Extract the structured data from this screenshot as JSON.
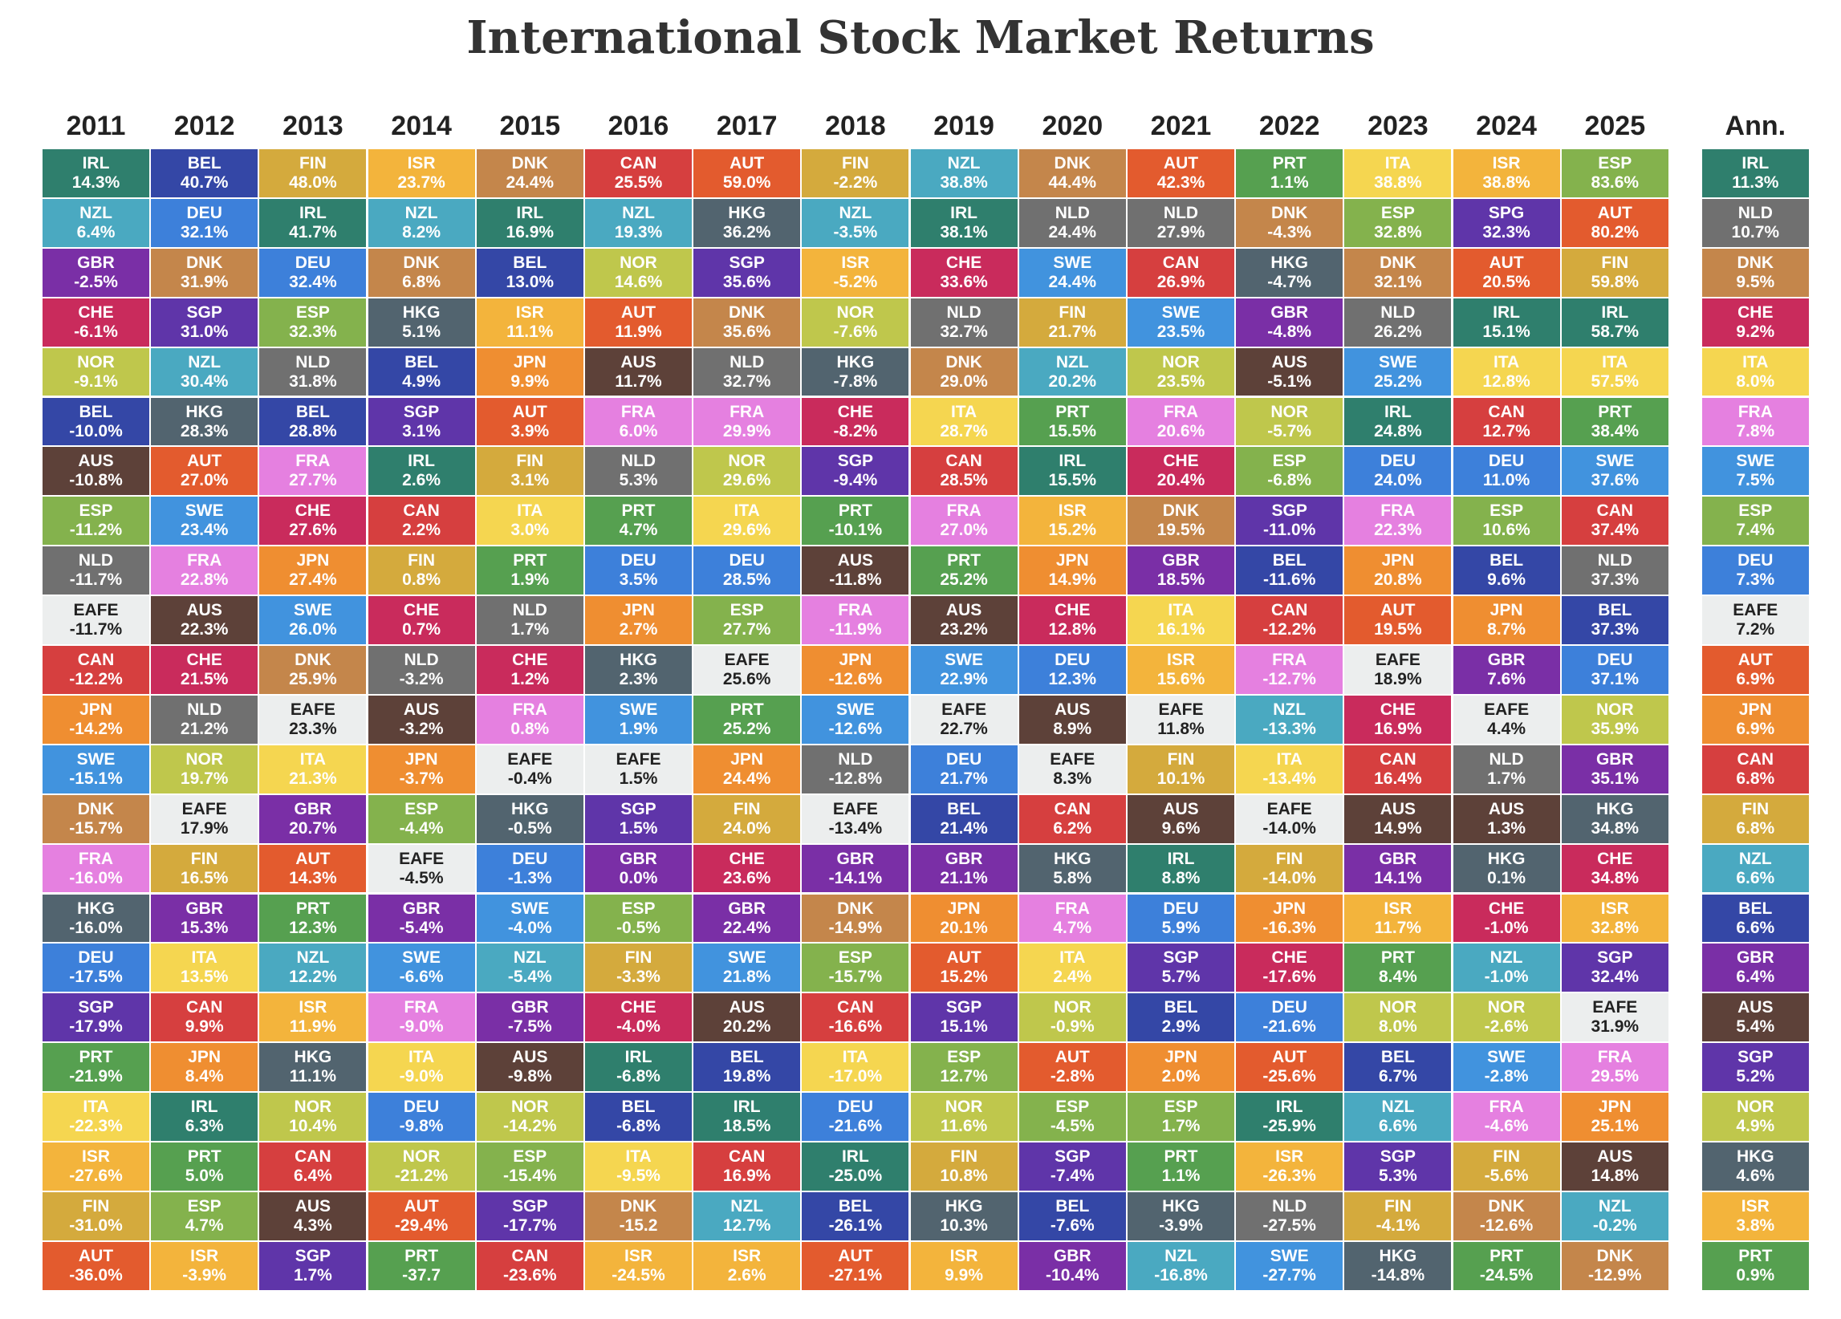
{
  "chart_data": {
    "type": "quilt",
    "title": "International Stock Market Returns",
    "colors": {
      "IRL": "#2f7f6d",
      "NZL": "#4aa9c1",
      "GBR": "#7a2fa6",
      "CHE": "#c92b5c",
      "NOR": "#bfc74c",
      "BEL": "#3447a6",
      "AUS": "#5d4139",
      "ESP": "#84b24d",
      "NLD": "#707070",
      "EAFE": "#eceeee",
      "CAN": "#d63f3f",
      "JPN": "#ef8e31",
      "SWE": "#4193de",
      "DNK": "#c4864b",
      "FRA": "#e580e0",
      "HKG": "#52646f",
      "DEU": "#3d80da",
      "SGP": "#5f35a9",
      "SPG": "#5f35a9",
      "PRT": "#56a050",
      "ITA": "#f5d650",
      "ISR": "#f3b43c",
      "FIN": "#d4aa3d",
      "AUT": "#e35b2e"
    },
    "columns": [
      {
        "header": "2011",
        "codes": [
          "IRL",
          "NZL",
          "GBR",
          "CHE",
          "NOR",
          "BEL",
          "AUS",
          "ESP",
          "NLD",
          "EAFE",
          "CAN",
          "JPN",
          "SWE",
          "DNK",
          "FRA",
          "HKG",
          "DEU",
          "SGP",
          "PRT",
          "ITA",
          "ISR",
          "FIN",
          "AUT"
        ],
        "labels": [
          "14.3%",
          "6.4%",
          "-2.5%",
          "-6.1%",
          "-9.1%",
          "-10.0%",
          "-10.8%",
          "-11.2%",
          "-11.7%",
          "-11.7%",
          "-12.2%",
          "-14.2%",
          "-15.1%",
          "-15.7%",
          "-16.0%",
          "-16.0%",
          "-17.5%",
          "-17.9%",
          "-21.9%",
          "-22.3%",
          "-27.6%",
          "-31.0%",
          "-36.0%"
        ]
      },
      {
        "header": "2012",
        "codes": [
          "BEL",
          "DEU",
          "DNK",
          "SGP",
          "NZL",
          "HKG",
          "AUT",
          "SWE",
          "FRA",
          "AUS",
          "CHE",
          "NLD",
          "NOR",
          "EAFE",
          "FIN",
          "GBR",
          "ITA",
          "CAN",
          "JPN",
          "IRL",
          "PRT",
          "ESP",
          "ISR"
        ],
        "labels": [
          "40.7%",
          "32.1%",
          "31.9%",
          "31.0%",
          "30.4%",
          "28.3%",
          "27.0%",
          "23.4%",
          "22.8%",
          "22.3%",
          "21.5%",
          "21.2%",
          "19.7%",
          "17.9%",
          "16.5%",
          "15.3%",
          "13.5%",
          "9.9%",
          "8.4%",
          "6.3%",
          "5.0%",
          "4.7%",
          "-3.9%"
        ]
      },
      {
        "header": "2013",
        "codes": [
          "FIN",
          "IRL",
          "DEU",
          "ESP",
          "NLD",
          "BEL",
          "FRA",
          "CHE",
          "JPN",
          "SWE",
          "DNK",
          "EAFE",
          "ITA",
          "GBR",
          "AUT",
          "PRT",
          "NZL",
          "ISR",
          "HKG",
          "NOR",
          "CAN",
          "AUS",
          "SGP"
        ],
        "labels": [
          "48.0%",
          "41.7%",
          "32.4%",
          "32.3%",
          "31.8%",
          "28.8%",
          "27.7%",
          "27.6%",
          "27.4%",
          "26.0%",
          "25.9%",
          "23.3%",
          "21.3%",
          "20.7%",
          "14.3%",
          "12.3%",
          "12.2%",
          "11.9%",
          "11.1%",
          "10.4%",
          "6.4%",
          "4.3%",
          "1.7%"
        ]
      },
      {
        "header": "2014",
        "codes": [
          "ISR",
          "NZL",
          "DNK",
          "HKG",
          "BEL",
          "SGP",
          "IRL",
          "CAN",
          "FIN",
          "CHE",
          "NLD",
          "AUS",
          "JPN",
          "ESP",
          "EAFE",
          "GBR",
          "SWE",
          "FRA",
          "ITA",
          "DEU",
          "NOR",
          "AUT",
          "PRT"
        ],
        "labels": [
          "23.7%",
          "8.2%",
          "6.8%",
          "5.1%",
          "4.9%",
          "3.1%",
          "2.6%",
          "2.2%",
          "0.8%",
          "0.7%",
          "-3.2%",
          "-3.2%",
          "-3.7%",
          "-4.4%",
          "-4.5%",
          "-5.4%",
          "-6.6%",
          "-9.0%",
          "-9.0%",
          "-9.8%",
          "-21.2%",
          "-29.4%",
          "-37.7"
        ]
      },
      {
        "header": "2015",
        "codes": [
          "DNK",
          "IRL",
          "BEL",
          "ISR",
          "JPN",
          "AUT",
          "FIN",
          "ITA",
          "PRT",
          "NLD",
          "CHE",
          "FRA",
          "EAFE",
          "HKG",
          "DEU",
          "SWE",
          "NZL",
          "GBR",
          "AUS",
          "NOR",
          "ESP",
          "SGP",
          "CAN"
        ],
        "labels": [
          "24.4%",
          "16.9%",
          "13.0%",
          "11.1%",
          "9.9%",
          "3.9%",
          "3.1%",
          "3.0%",
          "1.9%",
          "1.7%",
          "1.2%",
          "0.8%",
          "-0.4%",
          "-0.5%",
          "-1.3%",
          "-4.0%",
          "-5.4%",
          "-7.5%",
          "-9.8%",
          "-14.2%",
          "-15.4%",
          "-17.7%",
          "-23.6%"
        ]
      },
      {
        "header": "2016",
        "codes": [
          "CAN",
          "NZL",
          "NOR",
          "AUT",
          "AUS",
          "FRA",
          "NLD",
          "PRT",
          "DEU",
          "JPN",
          "HKG",
          "SWE",
          "EAFE",
          "SGP",
          "GBR",
          "ESP",
          "FIN",
          "CHE",
          "IRL",
          "BEL",
          "ITA",
          "DNK",
          "ISR"
        ],
        "labels": [
          "25.5%",
          "19.3%",
          "14.6%",
          "11.9%",
          "11.7%",
          "6.0%",
          "5.3%",
          "4.7%",
          "3.5%",
          "2.7%",
          "2.3%",
          "1.9%",
          "1.5%",
          "1.5%",
          "0.0%",
          "-0.5%",
          "-3.3%",
          "-4.0%",
          "-6.8%",
          "-6.8%",
          "-9.5%",
          "-15.2",
          "-24.5%"
        ]
      },
      {
        "header": "2017",
        "codes": [
          "AUT",
          "HKG",
          "SGP",
          "DNK",
          "NLD",
          "FRA",
          "NOR",
          "ITA",
          "DEU",
          "ESP",
          "EAFE",
          "PRT",
          "JPN",
          "FIN",
          "CHE",
          "GBR",
          "SWE",
          "AUS",
          "BEL",
          "IRL",
          "CAN",
          "NZL",
          "ISR"
        ],
        "labels": [
          "59.0%",
          "36.2%",
          "35.6%",
          "35.6%",
          "32.7%",
          "29.9%",
          "29.6%",
          "29.6%",
          "28.5%",
          "27.7%",
          "25.6%",
          "25.2%",
          "24.4%",
          "24.0%",
          "23.6%",
          "22.4%",
          "21.8%",
          "20.2%",
          "19.8%",
          "18.5%",
          "16.9%",
          "12.7%",
          "2.6%"
        ]
      },
      {
        "header": "2018",
        "codes": [
          "FIN",
          "NZL",
          "ISR",
          "NOR",
          "HKG",
          "CHE",
          "SGP",
          "PRT",
          "AUS",
          "FRA",
          "JPN",
          "SWE",
          "NLD",
          "EAFE",
          "GBR",
          "DNK",
          "ESP",
          "CAN",
          "ITA",
          "DEU",
          "IRL",
          "BEL",
          "AUT"
        ],
        "labels": [
          "-2.2%",
          "-3.5%",
          "-5.2%",
          "-7.6%",
          "-7.8%",
          "-8.2%",
          "-9.4%",
          "-10.1%",
          "-11.8%",
          "-11.9%",
          "-12.6%",
          "-12.6%",
          "-12.8%",
          "-13.4%",
          "-14.1%",
          "-14.9%",
          "-15.7%",
          "-16.6%",
          "-17.0%",
          "-21.6%",
          "-25.0%",
          "-26.1%",
          "-27.1%"
        ]
      },
      {
        "header": "2019",
        "codes": [
          "NZL",
          "IRL",
          "CHE",
          "NLD",
          "DNK",
          "ITA",
          "CAN",
          "FRA",
          "PRT",
          "AUS",
          "SWE",
          "EAFE",
          "DEU",
          "BEL",
          "GBR",
          "JPN",
          "AUT",
          "SGP",
          "ESP",
          "NOR",
          "FIN",
          "HKG",
          "ISR"
        ],
        "labels": [
          "38.8%",
          "38.1%",
          "33.6%",
          "32.7%",
          "29.0%",
          "28.7%",
          "28.5%",
          "27.0%",
          "25.2%",
          "23.2%",
          "22.9%",
          "22.7%",
          "21.7%",
          "21.4%",
          "21.1%",
          "20.1%",
          "15.2%",
          "15.1%",
          "12.7%",
          "11.6%",
          "10.8%",
          "10.3%",
          "9.9%"
        ]
      },
      {
        "header": "2020",
        "codes": [
          "DNK",
          "NLD",
          "SWE",
          "FIN",
          "NZL",
          "PRT",
          "IRL",
          "ISR",
          "JPN",
          "CHE",
          "DEU",
          "AUS",
          "EAFE",
          "CAN",
          "HKG",
          "FRA",
          "ITA",
          "NOR",
          "AUT",
          "ESP",
          "SGP",
          "BEL",
          "GBR"
        ],
        "labels": [
          "44.4%",
          "24.4%",
          "24.4%",
          "21.7%",
          "20.2%",
          "15.5%",
          "15.5%",
          "15.2%",
          "14.9%",
          "12.8%",
          "12.3%",
          "8.9%",
          "8.3%",
          "6.2%",
          "5.8%",
          "4.7%",
          "2.4%",
          "-0.9%",
          "-2.8%",
          "-4.5%",
          "-7.4%",
          "-7.6%",
          "-10.4%"
        ]
      },
      {
        "header": "2021",
        "codes": [
          "AUT",
          "NLD",
          "CAN",
          "SWE",
          "NOR",
          "FRA",
          "CHE",
          "DNK",
          "GBR",
          "ITA",
          "ISR",
          "EAFE",
          "FIN",
          "AUS",
          "IRL",
          "DEU",
          "SGP",
          "BEL",
          "JPN",
          "ESP",
          "PRT",
          "HKG",
          "NZL"
        ],
        "labels": [
          "42.3%",
          "27.9%",
          "26.9%",
          "23.5%",
          "23.5%",
          "20.6%",
          "20.4%",
          "19.5%",
          "18.5%",
          "16.1%",
          "15.6%",
          "11.8%",
          "10.1%",
          "9.6%",
          "8.8%",
          "5.9%",
          "5.7%",
          "2.9%",
          "2.0%",
          "1.7%",
          "1.1%",
          "-3.9%",
          "-16.8%"
        ]
      },
      {
        "header": "2022",
        "codes": [
          "PRT",
          "DNK",
          "HKG",
          "GBR",
          "AUS",
          "NOR",
          "ESP",
          "SGP",
          "BEL",
          "CAN",
          "FRA",
          "NZL",
          "ITA",
          "EAFE",
          "FIN",
          "JPN",
          "CHE",
          "DEU",
          "AUT",
          "IRL",
          "ISR",
          "NLD",
          "SWE"
        ],
        "labels": [
          "1.1%",
          "-4.3%",
          "-4.7%",
          "-4.8%",
          "-5.1%",
          "-5.7%",
          "-6.8%",
          "-11.0%",
          "-11.6%",
          "-12.2%",
          "-12.7%",
          "-13.3%",
          "-13.4%",
          "-14.0%",
          "-14.0%",
          "-16.3%",
          "-17.6%",
          "-21.6%",
          "-25.6%",
          "-25.9%",
          "-26.3%",
          "-27.5%",
          "-27.7%"
        ]
      },
      {
        "header": "2023",
        "codes": [
          "ITA",
          "ESP",
          "DNK",
          "NLD",
          "SWE",
          "IRL",
          "DEU",
          "FRA",
          "JPN",
          "AUT",
          "EAFE",
          "CHE",
          "CAN",
          "AUS",
          "GBR",
          "ISR",
          "PRT",
          "NOR",
          "BEL",
          "NZL",
          "SGP",
          "FIN",
          "HKG"
        ],
        "labels": [
          "38.8%",
          "32.8%",
          "32.1%",
          "26.2%",
          "25.2%",
          "24.8%",
          "24.0%",
          "22.3%",
          "20.8%",
          "19.5%",
          "18.9%",
          "16.9%",
          "16.4%",
          "14.9%",
          "14.1%",
          "11.7%",
          "8.4%",
          "8.0%",
          "6.7%",
          "6.6%",
          "5.3%",
          "-4.1%",
          "-14.8%"
        ]
      },
      {
        "header": "2024",
        "codes": [
          "ISR",
          "SPG",
          "AUT",
          "IRL",
          "ITA",
          "CAN",
          "DEU",
          "ESP",
          "BEL",
          "JPN",
          "GBR",
          "EAFE",
          "NLD",
          "AUS",
          "HKG",
          "CHE",
          "NZL",
          "NOR",
          "SWE",
          "FRA",
          "FIN",
          "DNK",
          "PRT"
        ],
        "labels": [
          "38.8%",
          "32.3%",
          "20.5%",
          "15.1%",
          "12.8%",
          "12.7%",
          "11.0%",
          "10.6%",
          "9.6%",
          "8.7%",
          "7.6%",
          "4.4%",
          "1.7%",
          "1.3%",
          "0.1%",
          "-1.0%",
          "-1.0%",
          "-2.6%",
          "-2.8%",
          "-4.6%",
          "-5.6%",
          "-12.6%",
          "-24.5%"
        ]
      },
      {
        "header": "2025",
        "codes": [
          "ESP",
          "AUT",
          "FIN",
          "IRL",
          "ITA",
          "PRT",
          "SWE",
          "CAN",
          "NLD",
          "BEL",
          "DEU",
          "NOR",
          "GBR",
          "HKG",
          "CHE",
          "ISR",
          "SGP",
          "EAFE",
          "FRA",
          "JPN",
          "AUS",
          "NZL",
          "DNK"
        ],
        "labels": [
          "83.6%",
          "80.2%",
          "59.8%",
          "58.7%",
          "57.5%",
          "38.4%",
          "37.6%",
          "37.4%",
          "37.3%",
          "37.3%",
          "37.1%",
          "35.9%",
          "35.1%",
          "34.8%",
          "34.8%",
          "32.8%",
          "32.4%",
          "31.9%",
          "29.5%",
          "25.1%",
          "14.8%",
          "-0.2%",
          "-12.9%"
        ]
      },
      {
        "header": "Ann.",
        "codes": [
          "IRL",
          "NLD",
          "DNK",
          "CHE",
          "ITA",
          "FRA",
          "SWE",
          "ESP",
          "DEU",
          "EAFE",
          "AUT",
          "JPN",
          "CAN",
          "FIN",
          "NZL",
          "BEL",
          "GBR",
          "AUS",
          "SGP",
          "NOR",
          "HKG",
          "ISR",
          "PRT"
        ],
        "labels": [
          "11.3%",
          "10.7%",
          "9.5%",
          "9.2%",
          "8.0%",
          "7.8%",
          "7.5%",
          "7.4%",
          "7.3%",
          "7.2%",
          "6.9%",
          "6.9%",
          "6.8%",
          "6.8%",
          "6.6%",
          "6.6%",
          "6.4%",
          "5.4%",
          "5.2%",
          "4.9%",
          "4.6%",
          "3.8%",
          "0.9%"
        ]
      }
    ]
  }
}
